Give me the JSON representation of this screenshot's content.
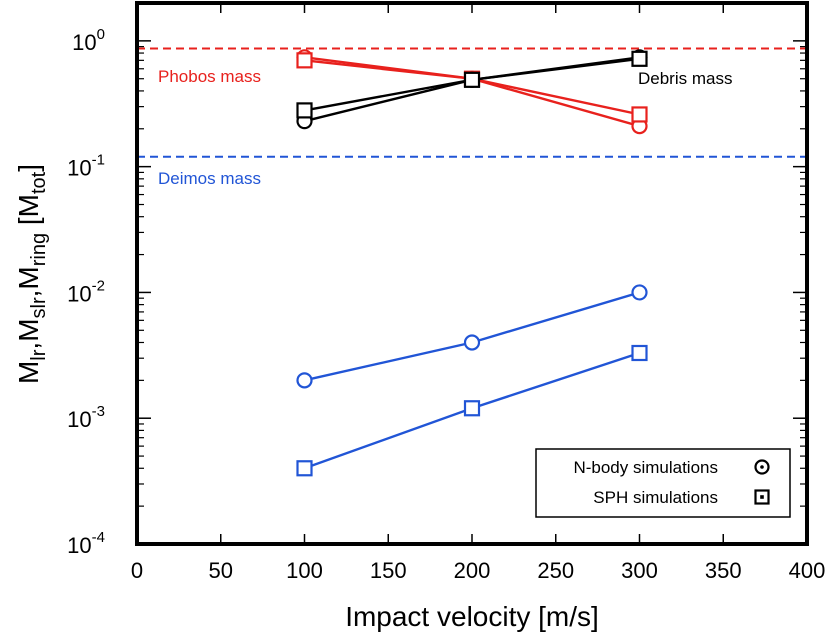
{
  "chart_data": {
    "type": "line",
    "xlabel": "Impact velocity [m/s]",
    "ylabel_parts": [
      "M",
      "lr",
      ",M",
      "slr",
      ",M",
      "ring",
      " [M",
      "tot",
      "]"
    ],
    "xlim": [
      0,
      400
    ],
    "ylim": [
      0.0001,
      2
    ],
    "yscale": "log",
    "x_ticks": [
      0,
      50,
      100,
      150,
      200,
      250,
      300,
      350,
      400
    ],
    "y_ticks": [
      {
        "value": 0.0001,
        "base": "10",
        "exp": "-4"
      },
      {
        "value": 0.001,
        "base": "10",
        "exp": "-3"
      },
      {
        "value": 0.01,
        "base": "10",
        "exp": "-2"
      },
      {
        "value": 0.1,
        "base": "10",
        "exp": "-1"
      },
      {
        "value": 1,
        "base": "10",
        "exp": "0"
      }
    ],
    "reference_lines": [
      {
        "name": "Phobos mass",
        "value": 0.87,
        "color": "#e8211d",
        "label": "Phobos mass"
      },
      {
        "name": "Deimos mass",
        "value": 0.12,
        "color": "#2155d6",
        "label": "Deimos mass"
      }
    ],
    "series": [
      {
        "name": "lr N-body",
        "group": "lr",
        "method": "N-body",
        "color": "#e8211d",
        "marker": "circle",
        "x": [
          100,
          200,
          300
        ],
        "values": [
          0.74,
          0.5,
          0.21
        ]
      },
      {
        "name": "lr SPH",
        "group": "lr",
        "method": "SPH",
        "color": "#e8211d",
        "marker": "square",
        "x": [
          100,
          200,
          300
        ],
        "values": [
          0.7,
          0.5,
          0.26
        ]
      },
      {
        "name": "ring N-body",
        "group": "ring",
        "method": "N-body",
        "color": "#000000",
        "marker": "circle",
        "x": [
          100,
          200,
          300
        ],
        "values": [
          0.23,
          0.49,
          0.74
        ]
      },
      {
        "name": "ring SPH",
        "group": "ring",
        "method": "SPH",
        "color": "#000000",
        "marker": "square",
        "x": [
          100,
          200,
          300
        ],
        "values": [
          0.28,
          0.49,
          0.72
        ]
      },
      {
        "name": "slr N-body",
        "group": "slr",
        "method": "N-body",
        "color": "#2155d6",
        "marker": "circle",
        "x": [
          100,
          200,
          300
        ],
        "values": [
          0.002,
          0.004,
          0.01
        ]
      },
      {
        "name": "slr SPH",
        "group": "slr",
        "method": "SPH",
        "color": "#2155d6",
        "marker": "square",
        "x": [
          100,
          200,
          300
        ],
        "values": [
          0.0004,
          0.0012,
          0.0033
        ]
      }
    ],
    "annotations": [
      {
        "text": "Debris mass",
        "color": "#000000"
      }
    ],
    "legend": {
      "placement": "bottom-right",
      "entries": [
        {
          "label": "N-body simulations",
          "marker": "circle-dot"
        },
        {
          "label": "SPH simulations",
          "marker": "square-dot"
        }
      ]
    }
  }
}
